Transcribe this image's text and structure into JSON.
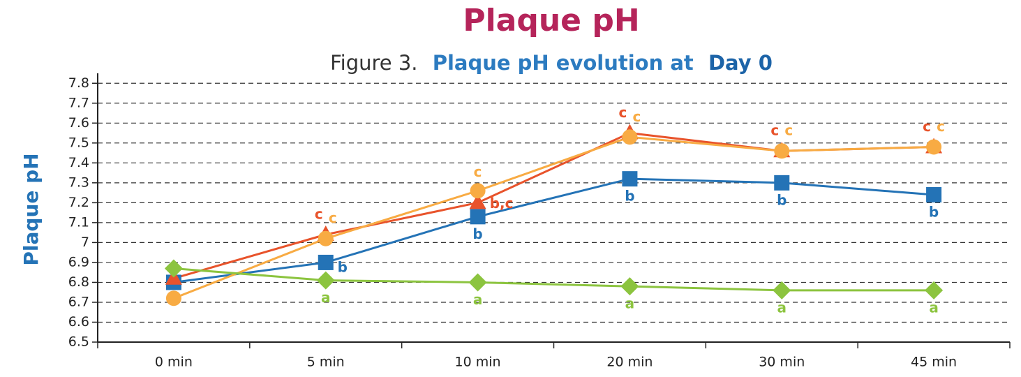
{
  "chart_data": {
    "type": "line",
    "title": "Plaque pH",
    "subtitle_prefix": "Figure 3.",
    "subtitle": "Plaque pH evolution at",
    "subtitle_emphasis": "Day 0",
    "y_label": "Plaque pH",
    "categories": [
      "0 min",
      "5 min",
      "10 min",
      "20 min",
      "30 min",
      "45 min"
    ],
    "series": [
      {
        "color": "#2473b6",
        "marker": "square",
        "values": [
          6.8,
          6.9,
          7.13,
          7.32,
          7.3,
          7.24
        ],
        "annotations": [
          null,
          "b",
          "b",
          "b",
          "b",
          "b"
        ]
      },
      {
        "color": "#e8532b",
        "marker": "triangle",
        "values": [
          6.82,
          7.04,
          7.2,
          7.55,
          7.46,
          7.48
        ],
        "annotations": [
          null,
          "c",
          "b,c",
          "c",
          "c",
          "c"
        ]
      },
      {
        "color": "#f8ab43",
        "marker": "circle",
        "values": [
          6.72,
          7.02,
          7.26,
          7.53,
          7.46,
          7.48
        ],
        "annotations": [
          null,
          "c",
          "c",
          "c",
          "c",
          "c"
        ]
      },
      {
        "color": "#8cc43f",
        "marker": "diamond",
        "values": [
          6.87,
          6.81,
          6.8,
          6.78,
          6.76,
          6.76
        ],
        "annotations": [
          null,
          "a",
          "a",
          "a",
          "a",
          "a"
        ]
      }
    ],
    "ylim": [
      6.5,
      7.85
    ],
    "yticks": [
      6.5,
      6.6,
      6.7,
      6.8,
      6.9,
      7,
      7.1,
      7.2,
      7.3,
      7.4,
      7.5,
      7.6,
      7.7,
      7.8
    ],
    "grid": true
  }
}
